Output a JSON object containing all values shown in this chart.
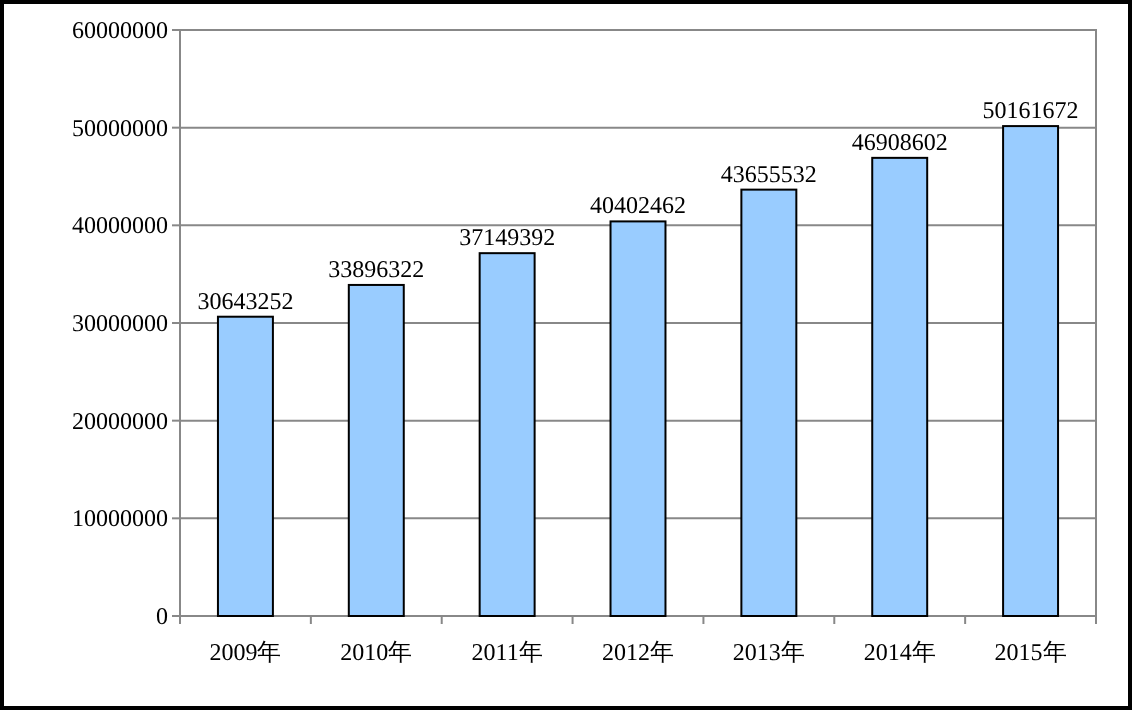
{
  "chart_data": {
    "type": "bar",
    "categories": [
      "2009年",
      "2010年",
      "2011年",
      "2012年",
      "2013年",
      "2014年",
      "2015年"
    ],
    "values": [
      30643252,
      33896322,
      37149392,
      40402462,
      43655532,
      46908602,
      50161672
    ],
    "color": "#99ccff",
    "ylim": [
      0,
      60000000
    ],
    "yticks": [
      0,
      10000000,
      20000000,
      30000000,
      40000000,
      50000000,
      60000000
    ],
    "grid": "y",
    "data_labels": true
  }
}
